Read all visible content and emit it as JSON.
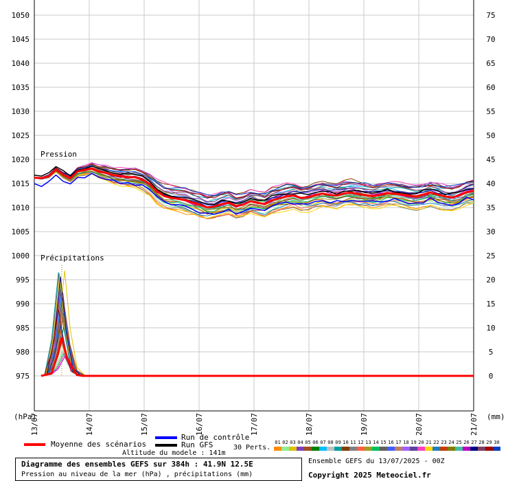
{
  "chart_data": {
    "type": "line",
    "title": "Diagramme des ensembles GEFS sur 384h : 41.9N 12.5E",
    "subtitle": "Pression au niveau de la mer (hPa) , précipitations (mm)",
    "altitude": "Altitude du modele : 141m",
    "ensemble_label": "Ensemble GEFS du 13/07/2025 - 00Z",
    "copyright": "Copyright 2025 Meteociel.fr",
    "left_axis_unit": "(hPa)",
    "right_axis_unit": "(mm)",
    "left_ticks": [
      "1050",
      "1045",
      "1040",
      "1035",
      "1030",
      "1025",
      "1020",
      "1015",
      "1010",
      "1005",
      "1000",
      "995",
      "990",
      "985",
      "980",
      "975"
    ],
    "right_ticks": [
      "75",
      "70",
      "65",
      "60",
      "55",
      "50",
      "45",
      "40",
      "35",
      "30",
      "25",
      "20",
      "15",
      "10",
      "5",
      "0"
    ],
    "ylim_pressure": [
      975,
      1050
    ],
    "ylim_precip": [
      0,
      75
    ],
    "x_labels": [
      "13/07",
      "14/07",
      "15/07",
      "16/07",
      "17/07",
      "18/07",
      "19/07",
      "20/07",
      "21/07"
    ],
    "pressure_label": "Pression",
    "precip_label": "Précipitations",
    "pressure_mean": [
      1016.2,
      1016.1,
      1016.5,
      1017.9,
      1016.8,
      1016.1,
      1017.5,
      1017.8,
      1018.1,
      1017.5,
      1017.2,
      1016.7,
      1016.5,
      1016.3,
      1016.3,
      1015.8,
      1014.9,
      1013.4,
      1012.4,
      1012.0,
      1011.8,
      1011.5,
      1011.0,
      1010.6,
      1010.0,
      1010.2,
      1010.7,
      1011.0,
      1010.3,
      1010.6,
      1011.3,
      1011.0,
      1010.7,
      1011.5,
      1011.9,
      1012.3,
      1012.5,
      1012.0,
      1012.1,
      1012.6,
      1012.9,
      1012.6,
      1012.5,
      1012.9,
      1013.1,
      1012.8,
      1012.6,
      1012.4,
      1012.6,
      1013.0,
      1012.9,
      1012.7,
      1012.5,
      1012.3,
      1012.7,
      1013.1,
      1012.7,
      1012.3,
      1012.1,
      1012.5,
      1013.2,
      1013.4
    ],
    "precip_mean_peak": 8.0,
    "series": [
      {
        "name": "Moyenne des scénarios",
        "color": "#ff0000"
      },
      {
        "name": "Run de contrôle",
        "color": "#0000ff"
      },
      {
        "name": "Run GFS",
        "color": "#000000"
      }
    ],
    "members_label": "30 Perts.",
    "member_ids": [
      "01",
      "02",
      "03",
      "04",
      "05",
      "06",
      "07",
      "08",
      "09",
      "10",
      "11",
      "12",
      "13",
      "14",
      "15",
      "16",
      "17",
      "18",
      "19",
      "20",
      "21",
      "22",
      "23",
      "24",
      "25",
      "26",
      "27",
      "28",
      "29",
      "30"
    ],
    "member_colors": [
      "#ff8c00",
      "#90ee90",
      "#e0c000",
      "#8040c0",
      "#a05020",
      "#008000",
      "#00bfff",
      "#c0c0c0",
      "#00a0a0",
      "#804000",
      "#808080",
      "#ff6040",
      "#a0a020",
      "#00c060",
      "#606060",
      "#4060ff",
      "#c08060",
      "#a060ff",
      "#6040a0",
      "#ff40c0",
      "#ffd700",
      "#2080c0",
      "#c04000",
      "#808000",
      "#40c0a0",
      "#c000c0",
      "#000080",
      "#804060",
      "#a00000",
      "#0040c0"
    ]
  }
}
